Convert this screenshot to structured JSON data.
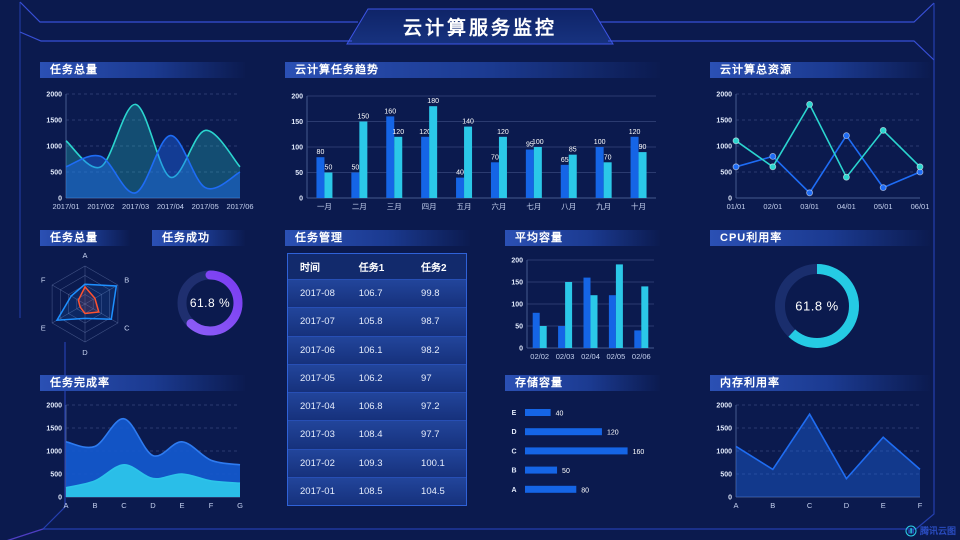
{
  "title": "云计算服务监控",
  "footer": {
    "logo_text": "腾讯云图"
  },
  "colors": {
    "background": "#0b1a4e",
    "accent_line": "#3d55e6",
    "panel_header_from": "#2b50b4",
    "panel_header_to": "#13296e",
    "bar_blue": "#1565e6",
    "bar_cyan": "#2bc8e8",
    "line_blue": "#1e6cf5",
    "line_cyan": "#2bd5cf",
    "gauge_purple": "#7a3cf2",
    "gauge_cyan": "#25cbe4",
    "radar_blue": "#1e90ff",
    "radar_orange": "#ff5230"
  },
  "table": {
    "title": "任务管理",
    "columns": [
      "时间",
      "任务1",
      "任务2"
    ],
    "rows": [
      [
        "2017-08",
        "106.7",
        "99.8"
      ],
      [
        "2017-07",
        "105.8",
        "98.7"
      ],
      [
        "2017-06",
        "106.1",
        "98.2"
      ],
      [
        "2017-05",
        "106.2",
        "97"
      ],
      [
        "2017-04",
        "106.8",
        "97.2"
      ],
      [
        "2017-03",
        "108.4",
        "97.7"
      ],
      [
        "2017-02",
        "109.3",
        "100.1"
      ],
      [
        "2017-01",
        "108.5",
        "104.5"
      ]
    ]
  },
  "chart_data": [
    {
      "id": "task-total-area",
      "type": "area",
      "smooth": true,
      "title": "任务总量",
      "x": [
        "2017/01",
        "2017/02",
        "2017/03",
        "2017/04",
        "2017/05",
        "2017/06"
      ],
      "ylim": [
        0,
        2000
      ],
      "yticks": [
        0,
        500,
        1000,
        1500,
        2000
      ],
      "grid": "dashed",
      "series": [
        {
          "color": "#2bd5cf",
          "fill_opacity": 0.28,
          "values": [
            1100,
            600,
            1800,
            400,
            1300,
            600
          ]
        },
        {
          "color": "#1e6cf5",
          "fill_opacity": 0.42,
          "values": [
            600,
            800,
            100,
            1200,
            200,
            500
          ]
        }
      ]
    },
    {
      "id": "task-trend-bar",
      "type": "bar",
      "title": "云计算任务趋势",
      "x": [
        "一月",
        "二月",
        "三月",
        "四月",
        "五月",
        "六月",
        "七月",
        "八月",
        "九月",
        "十月"
      ],
      "ylim": [
        0,
        200
      ],
      "yticks": [
        0,
        50,
        100,
        150,
        200
      ],
      "value_labels": true,
      "series": [
        {
          "color": "#1565e6",
          "values": [
            80,
            50,
            160,
            120,
            40,
            70,
            95,
            65,
            100,
            120
          ]
        },
        {
          "color": "#2bc8e8",
          "values": [
            50,
            150,
            120,
            180,
            140,
            120,
            100,
            85,
            70,
            90
          ]
        }
      ]
    },
    {
      "id": "cloud-resource-line",
      "type": "line",
      "title": "云计算总资源",
      "x": [
        "01/01",
        "02/01",
        "03/01",
        "04/01",
        "05/01",
        "06/01"
      ],
      "ylim": [
        0,
        2000
      ],
      "yticks": [
        0,
        500,
        1000,
        1500,
        2000
      ],
      "grid": "dashed",
      "markers": true,
      "series": [
        {
          "color": "#1e6cf5",
          "values": [
            600,
            800,
            100,
            1200,
            200,
            500
          ]
        },
        {
          "color": "#2bd5cf",
          "values": [
            1100,
            600,
            1800,
            400,
            1300,
            600
          ]
        }
      ]
    },
    {
      "id": "task-radar",
      "type": "radar",
      "title": "任务总量",
      "axes": [
        "A",
        "B",
        "C",
        "D",
        "E",
        "F"
      ],
      "max": 100,
      "series": [
        {
          "color": "#1e90ff",
          "fill_opacity": 0.12,
          "values": [
            52,
            95,
            80,
            38,
            85,
            42
          ]
        },
        {
          "color": "#ff5230",
          "fill_opacity": 0.12,
          "values": [
            45,
            30,
            42,
            25,
            15,
            20
          ]
        }
      ]
    },
    {
      "id": "task-success-gauge",
      "type": "donut",
      "title": "任务成功",
      "percent": 61.8,
      "label": "61.8 %",
      "colors": [
        "#8d5ff7",
        "#7a3cf2"
      ],
      "track": "#1f2f6f"
    },
    {
      "id": "avg-capacity-bar",
      "type": "bar",
      "title": "平均容量",
      "x": [
        "02/02",
        "02/03",
        "02/04",
        "02/05",
        "02/06"
      ],
      "ylim": [
        0,
        200
      ],
      "yticks": [
        0,
        50,
        100,
        150,
        200
      ],
      "value_labels": false,
      "series": [
        {
          "color": "#1565e6",
          "values": [
            80,
            50,
            160,
            120,
            40
          ]
        },
        {
          "color": "#2bc8e8",
          "values": [
            50,
            150,
            120,
            190,
            140
          ]
        }
      ]
    },
    {
      "id": "cpu-gauge",
      "type": "donut",
      "title": "CPU利用率",
      "percent": 61.8,
      "label": "61.8 %",
      "colors": [
        "#25cbe4",
        "#25cbe4"
      ],
      "track": "#1a2e6d"
    },
    {
      "id": "completion-area",
      "type": "area",
      "smooth": true,
      "title": "任务完成率",
      "x": [
        "A",
        "B",
        "C",
        "D",
        "E",
        "F",
        "G"
      ],
      "ylim": [
        0,
        2000
      ],
      "yticks": [
        0,
        500,
        1000,
        1500,
        2000
      ],
      "grid": "dashed",
      "series": [
        {
          "color": "#2e7bf0",
          "fill_opacity": 0.92,
          "fill_color": "#1459cf",
          "values": [
            1200,
            1100,
            1700,
            900,
            1200,
            800,
            700
          ]
        },
        {
          "color": "#2cc4ea",
          "fill_opacity": 0.95,
          "fill_color": "#2cc4ea",
          "values": [
            200,
            350,
            700,
            400,
            500,
            350,
            300
          ]
        }
      ]
    },
    {
      "id": "storage-hbar",
      "type": "hbar",
      "title": "存储容量",
      "categories": [
        "E",
        "D",
        "C",
        "B",
        "A"
      ],
      "values": [
        40,
        120,
        160,
        50,
        80
      ],
      "xmax": 170,
      "color": "#1565e6"
    },
    {
      "id": "memory-line",
      "type": "area",
      "smooth": false,
      "title": "内存利用率",
      "x": [
        "A",
        "B",
        "C",
        "D",
        "E",
        "F"
      ],
      "ylim": [
        0,
        2000
      ],
      "yticks": [
        0,
        500,
        1000,
        1500,
        2000
      ],
      "grid": "dashed",
      "series": [
        {
          "color": "#1f6df2",
          "fill_opacity": 0.38,
          "values": [
            1100,
            600,
            1800,
            400,
            1300,
            600
          ]
        }
      ]
    }
  ]
}
